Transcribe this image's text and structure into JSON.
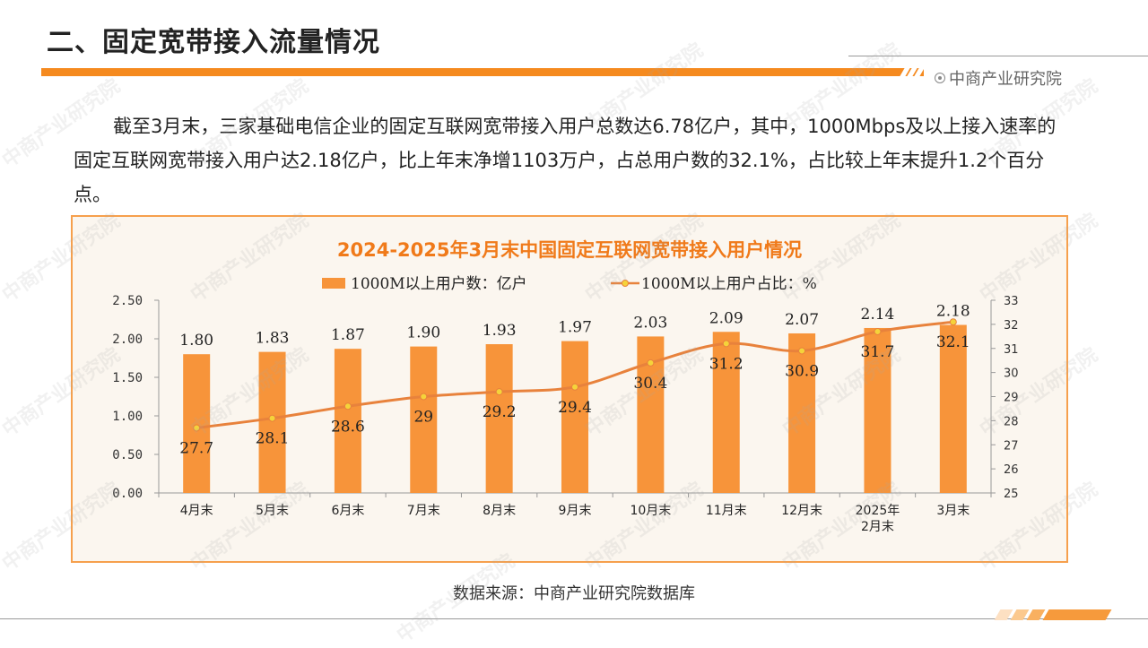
{
  "header": {
    "title": "二、固定宽带接入流量情况",
    "brand": "中商产业研究院"
  },
  "intro_text": "截至3月末，三家基础电信企业的固定互联网宽带接入用户总数达6.78亿户，其中，1000Mbps及以上接入速率的固定互联网宽带接入用户达2.18亿户，比上年末净增1103万户，占总用户数的32.1%，占比较上年末提升1.2个百分点。",
  "source": "数据来源：中商产业研究院数据库",
  "watermark": "中商产业研究院",
  "colors": {
    "accent": "#f58a1f",
    "bar": "#f7943a",
    "line": "#e8823c",
    "marker": "#f5d33a",
    "title_text": "#f07a1a",
    "background": "#fbf6ef"
  },
  "chart_data": {
    "type": "bar",
    "title": "2024-2025年3月末中国固定互联网宽带接入用户情况",
    "categories": [
      "4月末",
      "5月末",
      "6月末",
      "7月末",
      "8月末",
      "9月末",
      "10月末",
      "11月末",
      "12月末",
      "2025年\n2月末",
      "3月末"
    ],
    "series": [
      {
        "name": "1000M以上用户数：亿户",
        "type": "bar",
        "axis": "left",
        "values": [
          1.8,
          1.83,
          1.87,
          1.9,
          1.93,
          1.97,
          2.03,
          2.09,
          2.07,
          2.14,
          2.18
        ],
        "labels": [
          "1.80",
          "1.83",
          "1.87",
          "1.90",
          "1.93",
          "1.97",
          "2.03",
          "2.09",
          "2.07",
          "2.14",
          "2.18"
        ]
      },
      {
        "name": "1000M以上用户占比：%",
        "type": "line",
        "axis": "right",
        "values": [
          27.7,
          28.1,
          28.6,
          29,
          29.2,
          29.4,
          30.4,
          31.2,
          30.9,
          31.7,
          32.1
        ],
        "labels": [
          "27.7",
          "28.1",
          "28.6",
          "29",
          "29.2",
          "29.4",
          "30.4",
          "31.2",
          "30.9",
          "31.7",
          "32.1"
        ]
      }
    ],
    "ylim_left": [
      0,
      2.5
    ],
    "yticks_left": [
      "0.00",
      "0.50",
      "1.00",
      "1.50",
      "2.00",
      "2.50"
    ],
    "ylim_right": [
      25,
      33
    ],
    "yticks_right": [
      "25",
      "26",
      "27",
      "28",
      "29",
      "30",
      "31",
      "32",
      "33"
    ],
    "grid": false,
    "legend": "top"
  }
}
